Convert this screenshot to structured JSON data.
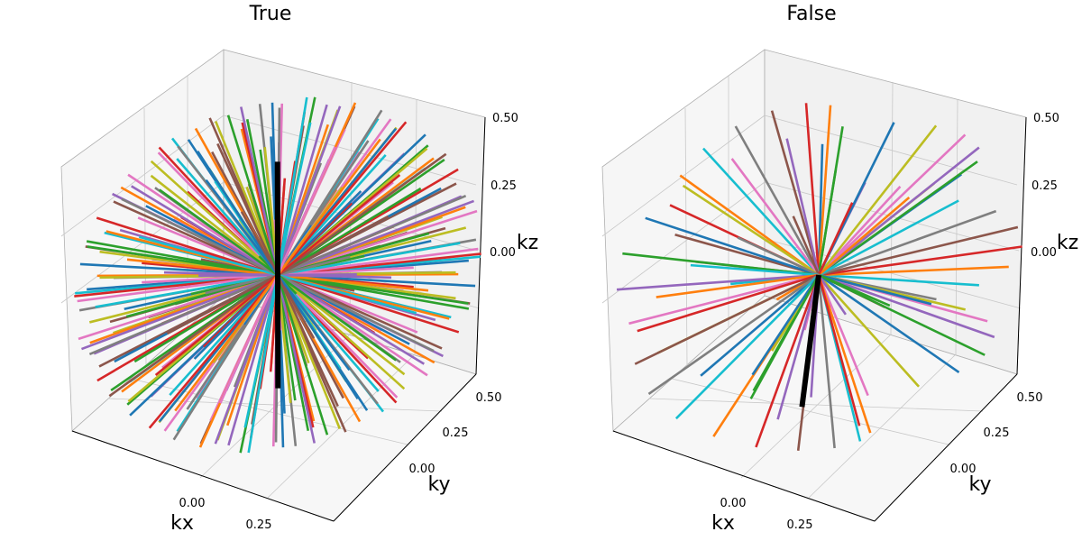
{
  "chart_data": [
    {
      "type": "line",
      "title": "True",
      "xlabel": "kx",
      "ylabel": "ky",
      "zlabel": "kz",
      "xlim": [
        -0.5,
        0.5
      ],
      "ylim": [
        -0.5,
        0.5
      ],
      "zlim": [
        -0.5,
        0.5
      ],
      "x_ticks": [
        "0.00",
        "0.25"
      ],
      "y_ticks": [
        "0.00",
        "0.25",
        "0.50"
      ],
      "z_ticks": [
        "0.00",
        "0.25",
        "0.50"
      ],
      "grid": true,
      "spokes": 150,
      "spoke_radius": 0.5,
      "highlight_spoke": {
        "direction": [
          0.12,
          0.05,
          0.99
        ],
        "color": "#000000"
      }
    },
    {
      "type": "line",
      "title": "False",
      "xlabel": "kx",
      "ylabel": "ky",
      "zlabel": "kz",
      "xlim": [
        -0.5,
        0.5
      ],
      "ylim": [
        -0.5,
        0.5
      ],
      "zlim": [
        -0.5,
        0.5
      ],
      "x_ticks": [
        "0.00",
        "0.25"
      ],
      "y_ticks": [
        "0.00",
        "0.25",
        "0.50"
      ],
      "z_ticks": [
        "0.00",
        "0.25",
        "0.50"
      ],
      "grid": true,
      "spokes": 75,
      "spoke_radius": 0.5,
      "highlight_spoke": {
        "direction": [
          0.1,
          0.03,
          -0.99
        ],
        "color": "#000000"
      }
    }
  ],
  "colors": [
    "#1f77b4",
    "#ff7f0e",
    "#2ca02c",
    "#d62728",
    "#9467bd",
    "#8c564b",
    "#e377c2",
    "#7f7f7f",
    "#bcbd22",
    "#17becf"
  ]
}
